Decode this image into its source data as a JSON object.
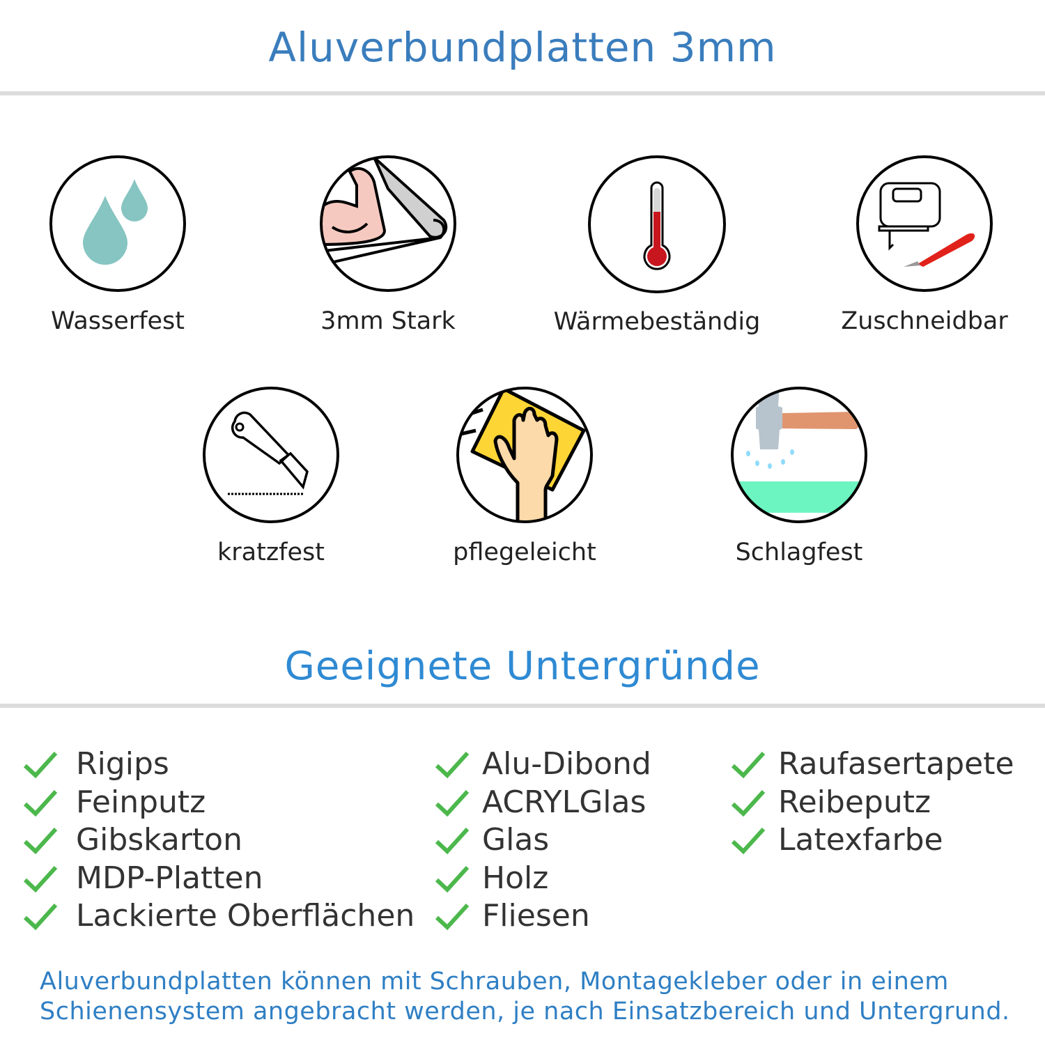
{
  "header": {
    "title": "Aluverbundplatten 3mm"
  },
  "features": [
    {
      "label": "Wasserfest",
      "icon": "water-drops-icon"
    },
    {
      "label": "3mm Stark",
      "icon": "strong-arm-icon"
    },
    {
      "label": "Wärmebeständig",
      "icon": "thermometer-icon"
    },
    {
      "label": "Zuschneidbar",
      "icon": "jigsaw-cutter-icon"
    },
    {
      "label": "kratzfest",
      "icon": "utility-knife-icon"
    },
    {
      "label": "pflegeleicht",
      "icon": "cleaning-hand-icon"
    },
    {
      "label": "Schlagfest",
      "icon": "hammer-icon"
    }
  ],
  "surfaces": {
    "title": "Geeignete Untergründe",
    "columns": [
      [
        "Rigips",
        "Feinputz",
        "Gibskarton",
        "MDP-Platten",
        "Lackierte Oberflächen"
      ],
      [
        "Alu-Dibond",
        "ACRYLGlas",
        "Glas",
        "Holz",
        "Fliesen"
      ],
      [
        "Raufasertapete",
        "Reibeputz",
        "Latexfarbe"
      ]
    ]
  },
  "footer": {
    "line1": "Aluverbundplatten können mit Schrauben, Montagekleber oder in einem",
    "line2": "Schienensystem angebracht werden, je nach Einsatzbereich und Untergrund."
  },
  "colors": {
    "title": "#3a7dbd",
    "subtitle": "#2f8ad3",
    "check": "#4cb84c",
    "footer": "#2f7fc4"
  }
}
